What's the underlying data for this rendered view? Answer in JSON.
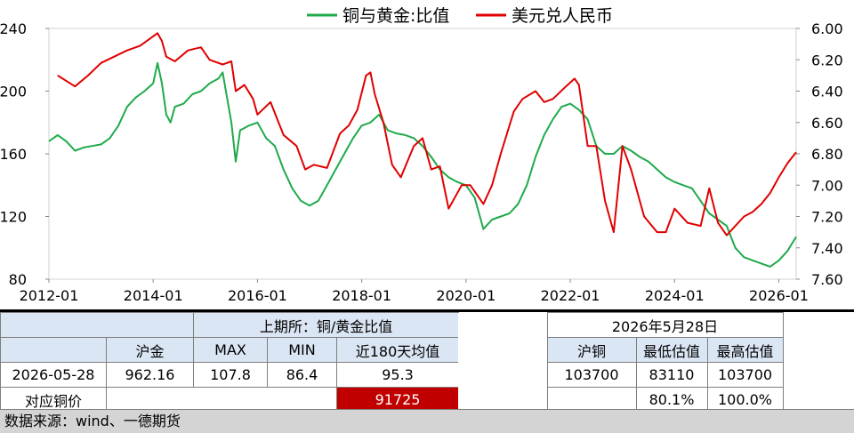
{
  "chart_data": {
    "type": "line",
    "legend_position": "top-center",
    "grid": false,
    "x_ticks": [
      "2012-01",
      "2014-01",
      "2016-01",
      "2018-01",
      "2020-01",
      "2022-01",
      "2024-01",
      "2026-01"
    ],
    "x_range": [
      "2012-01",
      "2026-05"
    ],
    "y_left": {
      "range": [
        80,
        240
      ],
      "ticks": [
        "80",
        "120",
        "160",
        "200",
        "240"
      ]
    },
    "y_right": {
      "range": [
        6.0,
        7.6
      ],
      "inverted": true,
      "ticks": [
        "6.00",
        "6.20",
        "6.40",
        "6.60",
        "6.80",
        "7.00",
        "7.20",
        "7.40",
        "7.60"
      ]
    },
    "series": [
      {
        "name": "铜与黄金:比值",
        "color": "#1faa4b",
        "axis": "left",
        "points": [
          [
            "2012-01",
            168
          ],
          [
            "2012-03",
            172
          ],
          [
            "2012-05",
            168
          ],
          [
            "2012-07",
            162
          ],
          [
            "2012-09",
            164
          ],
          [
            "2012-11",
            165
          ],
          [
            "2013-01",
            166
          ],
          [
            "2013-03",
            170
          ],
          [
            "2013-05",
            178
          ],
          [
            "2013-07",
            190
          ],
          [
            "2013-09",
            196
          ],
          [
            "2013-11",
            200
          ],
          [
            "2014-01",
            205
          ],
          [
            "2014-02",
            218
          ],
          [
            "2014-03",
            205
          ],
          [
            "2014-04",
            185
          ],
          [
            "2014-05",
            180
          ],
          [
            "2014-06",
            190
          ],
          [
            "2014-08",
            192
          ],
          [
            "2014-10",
            198
          ],
          [
            "2014-12",
            200
          ],
          [
            "2015-02",
            205
          ],
          [
            "2015-04",
            208
          ],
          [
            "2015-05",
            212
          ],
          [
            "2015-07",
            180
          ],
          [
            "2015-08",
            155
          ],
          [
            "2015-09",
            175
          ],
          [
            "2015-11",
            178
          ],
          [
            "2016-01",
            180
          ],
          [
            "2016-03",
            170
          ],
          [
            "2016-05",
            165
          ],
          [
            "2016-07",
            150
          ],
          [
            "2016-09",
            138
          ],
          [
            "2016-11",
            130
          ],
          [
            "2017-01",
            127
          ],
          [
            "2017-03",
            130
          ],
          [
            "2017-05",
            140
          ],
          [
            "2017-07",
            150
          ],
          [
            "2017-09",
            160
          ],
          [
            "2017-11",
            170
          ],
          [
            "2018-01",
            178
          ],
          [
            "2018-03",
            180
          ],
          [
            "2018-05",
            185
          ],
          [
            "2018-07",
            175
          ],
          [
            "2018-09",
            173
          ],
          [
            "2018-11",
            172
          ],
          [
            "2019-01",
            170
          ],
          [
            "2019-03",
            165
          ],
          [
            "2019-05",
            158
          ],
          [
            "2019-07",
            150
          ],
          [
            "2019-09",
            145
          ],
          [
            "2019-11",
            142
          ],
          [
            "2020-01",
            140
          ],
          [
            "2020-03",
            132
          ],
          [
            "2020-05",
            112
          ],
          [
            "2020-07",
            118
          ],
          [
            "2020-09",
            120
          ],
          [
            "2020-11",
            122
          ],
          [
            "2021-01",
            128
          ],
          [
            "2021-03",
            140
          ],
          [
            "2021-05",
            158
          ],
          [
            "2021-07",
            172
          ],
          [
            "2021-09",
            182
          ],
          [
            "2021-11",
            190
          ],
          [
            "2022-01",
            192
          ],
          [
            "2022-03",
            188
          ],
          [
            "2022-05",
            182
          ],
          [
            "2022-07",
            165
          ],
          [
            "2022-09",
            160
          ],
          [
            "2022-11",
            160
          ],
          [
            "2023-01",
            165
          ],
          [
            "2023-03",
            162
          ],
          [
            "2023-05",
            158
          ],
          [
            "2023-07",
            155
          ],
          [
            "2023-09",
            150
          ],
          [
            "2023-11",
            145
          ],
          [
            "2024-01",
            142
          ],
          [
            "2024-03",
            140
          ],
          [
            "2024-05",
            138
          ],
          [
            "2024-07",
            130
          ],
          [
            "2024-09",
            122
          ],
          [
            "2024-11",
            118
          ],
          [
            "2025-01",
            114
          ],
          [
            "2025-03",
            100
          ],
          [
            "2025-05",
            94
          ],
          [
            "2025-07",
            92
          ],
          [
            "2025-09",
            90
          ],
          [
            "2025-11",
            88
          ],
          [
            "2026-01",
            92
          ],
          [
            "2026-03",
            98
          ],
          [
            "2026-05",
            107
          ]
        ]
      },
      {
        "name": "美元兑人民币",
        "color": "#e10000",
        "axis": "right",
        "points": [
          [
            "2012-03",
            6.3
          ],
          [
            "2012-07",
            6.37
          ],
          [
            "2012-10",
            6.3
          ],
          [
            "2013-01",
            6.22
          ],
          [
            "2013-04",
            6.18
          ],
          [
            "2013-07",
            6.14
          ],
          [
            "2013-10",
            6.11
          ],
          [
            "2014-01",
            6.05
          ],
          [
            "2014-02",
            6.03
          ],
          [
            "2014-03",
            6.08
          ],
          [
            "2014-04",
            6.18
          ],
          [
            "2014-06",
            6.21
          ],
          [
            "2014-09",
            6.14
          ],
          [
            "2014-12",
            6.12
          ],
          [
            "2015-02",
            6.2
          ],
          [
            "2015-05",
            6.23
          ],
          [
            "2015-07",
            6.21
          ],
          [
            "2015-08",
            6.4
          ],
          [
            "2015-10",
            6.36
          ],
          [
            "2015-12",
            6.45
          ],
          [
            "2016-01",
            6.55
          ],
          [
            "2016-04",
            6.47
          ],
          [
            "2016-07",
            6.68
          ],
          [
            "2016-10",
            6.75
          ],
          [
            "2016-12",
            6.9
          ],
          [
            "2017-02",
            6.87
          ],
          [
            "2017-05",
            6.89
          ],
          [
            "2017-08",
            6.67
          ],
          [
            "2017-10",
            6.62
          ],
          [
            "2017-12",
            6.52
          ],
          [
            "2018-02",
            6.3
          ],
          [
            "2018-03",
            6.28
          ],
          [
            "2018-04",
            6.42
          ],
          [
            "2018-06",
            6.6
          ],
          [
            "2018-08",
            6.87
          ],
          [
            "2018-10",
            6.95
          ],
          [
            "2019-01",
            6.75
          ],
          [
            "2019-03",
            6.7
          ],
          [
            "2019-05",
            6.9
          ],
          [
            "2019-07",
            6.88
          ],
          [
            "2019-09",
            7.15
          ],
          [
            "2019-12",
            7.0
          ],
          [
            "2020-02",
            7.0
          ],
          [
            "2020-05",
            7.12
          ],
          [
            "2020-07",
            7.0
          ],
          [
            "2020-09",
            6.8
          ],
          [
            "2020-12",
            6.53
          ],
          [
            "2021-02",
            6.45
          ],
          [
            "2021-05",
            6.4
          ],
          [
            "2021-07",
            6.47
          ],
          [
            "2021-09",
            6.45
          ],
          [
            "2021-12",
            6.37
          ],
          [
            "2022-02",
            6.32
          ],
          [
            "2022-03",
            6.36
          ],
          [
            "2022-05",
            6.75
          ],
          [
            "2022-07",
            6.75
          ],
          [
            "2022-09",
            7.1
          ],
          [
            "2022-11",
            7.3
          ],
          [
            "2023-01",
            6.75
          ],
          [
            "2023-03",
            6.9
          ],
          [
            "2023-06",
            7.2
          ],
          [
            "2023-09",
            7.3
          ],
          [
            "2023-11",
            7.3
          ],
          [
            "2024-01",
            7.15
          ],
          [
            "2024-04",
            7.24
          ],
          [
            "2024-07",
            7.26
          ],
          [
            "2024-09",
            7.02
          ],
          [
            "2024-11",
            7.24
          ],
          [
            "2025-01",
            7.32
          ],
          [
            "2025-03",
            7.26
          ],
          [
            "2025-05",
            7.2
          ],
          [
            "2025-07",
            7.17
          ],
          [
            "2025-09",
            7.12
          ],
          [
            "2025-11",
            7.05
          ],
          [
            "2026-01",
            6.95
          ],
          [
            "2026-03",
            6.86
          ],
          [
            "2026-05",
            6.79
          ]
        ]
      }
    ]
  },
  "table_left": {
    "title": "上期所：铜/黄金比值",
    "headers": [
      "沪金",
      "MAX",
      "MIN",
      "近180天均值"
    ],
    "row1": {
      "label": "2026-05-28",
      "values": [
        "962.16",
        "107.8",
        "86.4",
        "95.3"
      ]
    },
    "row2": {
      "label": "对应铜价",
      "value": "91725"
    }
  },
  "table_right": {
    "title": "2026年5月28日",
    "headers": [
      "沪铜",
      "最低估值",
      "最高估值"
    ],
    "row1": [
      "103700",
      "83110",
      "103700"
    ],
    "row2": [
      "80.1%",
      "100.0%"
    ]
  },
  "colors": {
    "header_bg": "#dbe6f4",
    "highlight": "#c00000",
    "footer_bg": "#d4d4d4"
  },
  "source": "数据来源：wind、一德期货"
}
